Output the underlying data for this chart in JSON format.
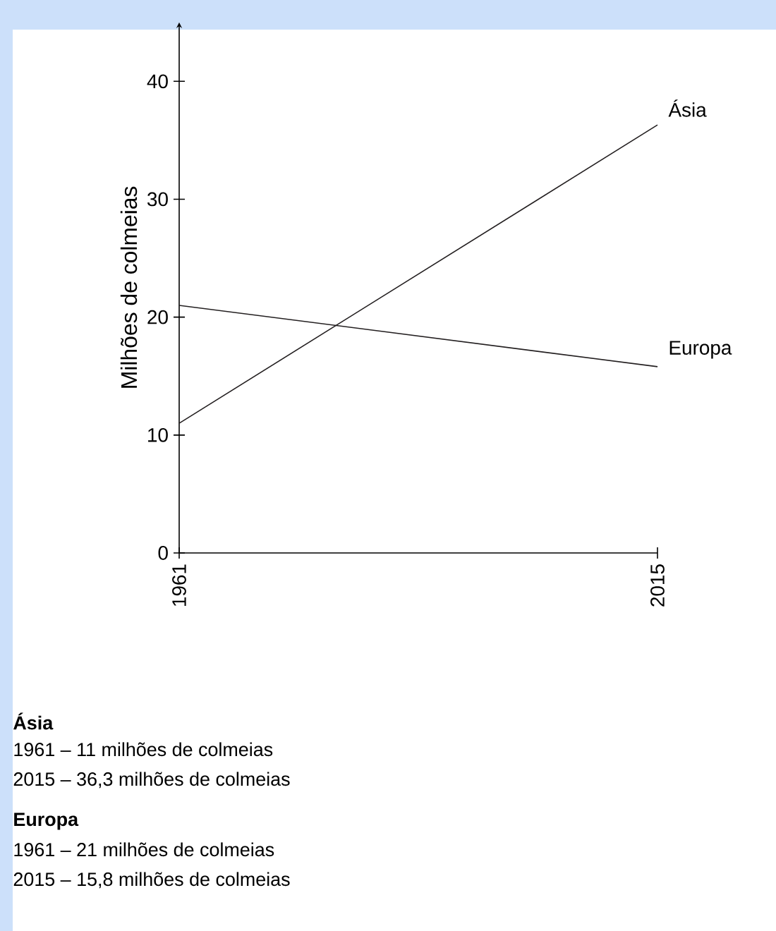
{
  "chart_data": {
    "type": "line",
    "ylabel": "Milhões de colmeias",
    "categories": [
      "1961",
      "2015"
    ],
    "series": [
      {
        "name": "Ásia",
        "color": "#231f20",
        "values": [
          11,
          36.3
        ]
      },
      {
        "name": "Europa",
        "color": "#231f20",
        "values": [
          21,
          15.8
        ]
      }
    ],
    "ylim": [
      0,
      45
    ],
    "yticks": [
      0,
      10,
      20,
      30,
      40
    ],
    "grid": false,
    "legend": false,
    "marker": "none",
    "line_style": "solid",
    "annotations": [
      "**Ásia**",
      "1961 – 11 milhões de colmeias",
      "2015 – 36,3 milhões de colmeias",
      "**Europa**",
      "1961 – 21 milhões de colmeias",
      "2015 – 15,8 milhões de colmeias"
    ]
  }
}
